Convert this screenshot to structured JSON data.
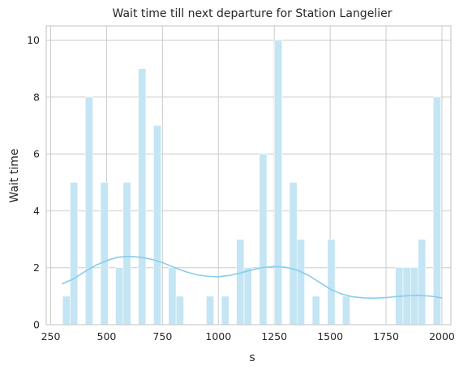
{
  "chart_data": {
    "type": "bar",
    "title": "Wait time till next departure for Station Langelier",
    "xlabel": "s",
    "ylabel": "Wait time",
    "xlim": [
      230,
      2040
    ],
    "ylim": [
      0,
      10.5
    ],
    "xticks": [
      250,
      500,
      750,
      1000,
      1250,
      1500,
      1750,
      2000
    ],
    "yticks": [
      0,
      2,
      4,
      6,
      8,
      10
    ],
    "grid": true,
    "bar_color": "#c4e5f4",
    "kde_color": "#87ceeb",
    "bin_width": 33.8,
    "bins": [
      {
        "x": 303,
        "count": 1
      },
      {
        "x": 337,
        "count": 5
      },
      {
        "x": 405,
        "count": 8
      },
      {
        "x": 473,
        "count": 5
      },
      {
        "x": 540,
        "count": 2
      },
      {
        "x": 574,
        "count": 5
      },
      {
        "x": 642,
        "count": 9
      },
      {
        "x": 710,
        "count": 7
      },
      {
        "x": 777,
        "count": 2
      },
      {
        "x": 811,
        "count": 1
      },
      {
        "x": 946,
        "count": 1
      },
      {
        "x": 1014,
        "count": 1
      },
      {
        "x": 1081,
        "count": 3
      },
      {
        "x": 1115,
        "count": 2
      },
      {
        "x": 1183,
        "count": 6
      },
      {
        "x": 1251,
        "count": 10
      },
      {
        "x": 1318,
        "count": 5
      },
      {
        "x": 1352,
        "count": 3
      },
      {
        "x": 1420,
        "count": 1
      },
      {
        "x": 1488,
        "count": 3
      },
      {
        "x": 1555,
        "count": 1
      },
      {
        "x": 1792,
        "count": 2
      },
      {
        "x": 1826,
        "count": 2
      },
      {
        "x": 1860,
        "count": 2
      },
      {
        "x": 1893,
        "count": 3
      },
      {
        "x": 1961,
        "count": 8
      }
    ],
    "kde": {
      "x": [
        300,
        350,
        400,
        450,
        500,
        550,
        600,
        650,
        700,
        750,
        800,
        850,
        900,
        950,
        1000,
        1050,
        1100,
        1150,
        1200,
        1250,
        1300,
        1350,
        1400,
        1450,
        1500,
        1550,
        1600,
        1650,
        1700,
        1750,
        1800,
        1850,
        1900,
        1950,
        2000
      ],
      "y": [
        1.43,
        1.6,
        1.85,
        2.08,
        2.25,
        2.37,
        2.4,
        2.37,
        2.3,
        2.18,
        2.02,
        1.87,
        1.76,
        1.7,
        1.68,
        1.73,
        1.82,
        1.93,
        2.01,
        2.04,
        2.02,
        1.92,
        1.75,
        1.5,
        1.25,
        1.08,
        0.98,
        0.94,
        0.93,
        0.95,
        0.99,
        1.02,
        1.03,
        1.0,
        0.94
      ]
    }
  }
}
